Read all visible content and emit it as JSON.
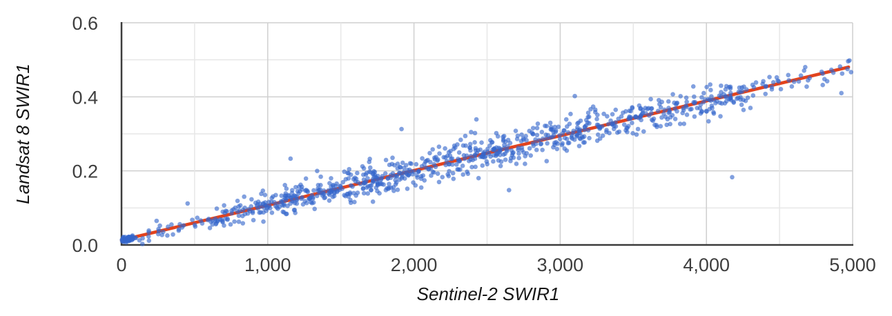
{
  "chart_data": {
    "type": "scatter",
    "title": "",
    "xlabel": "Sentinel-2 SWIR1",
    "ylabel": "Landsat 8 SWIR1",
    "xlim": [
      0,
      5000
    ],
    "ylim": [
      0,
      0.6
    ],
    "grid": true,
    "legend": "none",
    "x_ticks": [
      {
        "value": 0,
        "label": "0"
      },
      {
        "value": 1000,
        "label": "1,000"
      },
      {
        "value": 2000,
        "label": "2,000"
      },
      {
        "value": 3000,
        "label": "3,000"
      },
      {
        "value": 4000,
        "label": "4,000"
      },
      {
        "value": 5000,
        "label": "5,000"
      }
    ],
    "y_ticks": [
      {
        "value": 0,
        "label": "0.0"
      },
      {
        "value": 0.2,
        "label": "0.2"
      },
      {
        "value": 0.4,
        "label": "0.4"
      },
      {
        "value": 0.6,
        "label": "0.6"
      }
    ],
    "x_major_step": 1000,
    "x_minor_step": 500,
    "y_major_step": 0.2,
    "y_minor_step": 0.1,
    "trendline": {
      "type": "linear",
      "equation": "y = 0.000094x + 0.013",
      "slope": 9.4e-05,
      "intercept": 0.013,
      "x_start": 0,
      "x_end": 4972,
      "y_at_start": 0.013,
      "y_at_end": 0.48,
      "color": "#E2431E",
      "width": 4.6
    },
    "scatter": {
      "n_points_approx": 980,
      "marker": {
        "color": "#3366CC",
        "opacity": 0.62,
        "radius": 3.3
      },
      "description": "Dense cloud of semi-transparent blue points following the linear trend y=0.000094x+0.013 with gaussian scatter; very dense dark clump at the origin (x 0-80, y 0-0.02); sparse below x=700; densest between x=1500 and x=3800; points reach up to about (4980, 0.50).",
      "generation": {
        "seed": 11,
        "y_clamp": [
          0.001,
          0.585
        ],
        "segments": [
          {
            "x0": 3,
            "x1": 80,
            "n": 55,
            "sd": 0.0045
          },
          {
            "x0": 80,
            "x1": 350,
            "n": 18,
            "sd": 0.01
          },
          {
            "x0": 350,
            "x1": 700,
            "n": 30,
            "sd": 0.014
          },
          {
            "x0": 700,
            "x1": 1100,
            "n": 75,
            "sd": 0.017
          },
          {
            "x0": 1100,
            "x1": 1500,
            "n": 110,
            "sd": 0.02
          },
          {
            "x0": 1500,
            "x1": 2000,
            "n": 140,
            "sd": 0.023
          },
          {
            "x0": 2000,
            "x1": 2600,
            "n": 150,
            "sd": 0.024
          },
          {
            "x0": 2600,
            "x1": 3200,
            "n": 145,
            "sd": 0.024
          },
          {
            "x0": 3200,
            "x1": 3800,
            "n": 115,
            "sd": 0.022
          },
          {
            "x0": 3800,
            "x1": 4300,
            "n": 90,
            "sd": 0.02
          },
          {
            "x0": 4300,
            "x1": 4700,
            "n": 28,
            "sd": 0.018
          },
          {
            "x0": 4700,
            "x1": 5000,
            "n": 14,
            "sd": 0.015
          }
        ]
      },
      "outlier_points": [
        [
          1156,
          0.233
        ],
        [
          1915,
          0.313
        ],
        [
          2427,
          0.339
        ],
        [
          3100,
          0.402
        ],
        [
          4176,
          0.183
        ],
        [
          4923,
          0.41
        ],
        [
          452,
          0.112
        ],
        [
          240,
          0.065
        ],
        [
          2650,
          0.148
        ],
        [
          2050,
          0.155
        ]
      ]
    },
    "style": {
      "background": "#FFFFFF",
      "grid_major_color": "#CFCFCF",
      "grid_minor_color": "#E7E7E7",
      "axis_color": "#3C3C3C",
      "tick_label_color": "#3E3E3E",
      "title_color": "#161616"
    }
  }
}
